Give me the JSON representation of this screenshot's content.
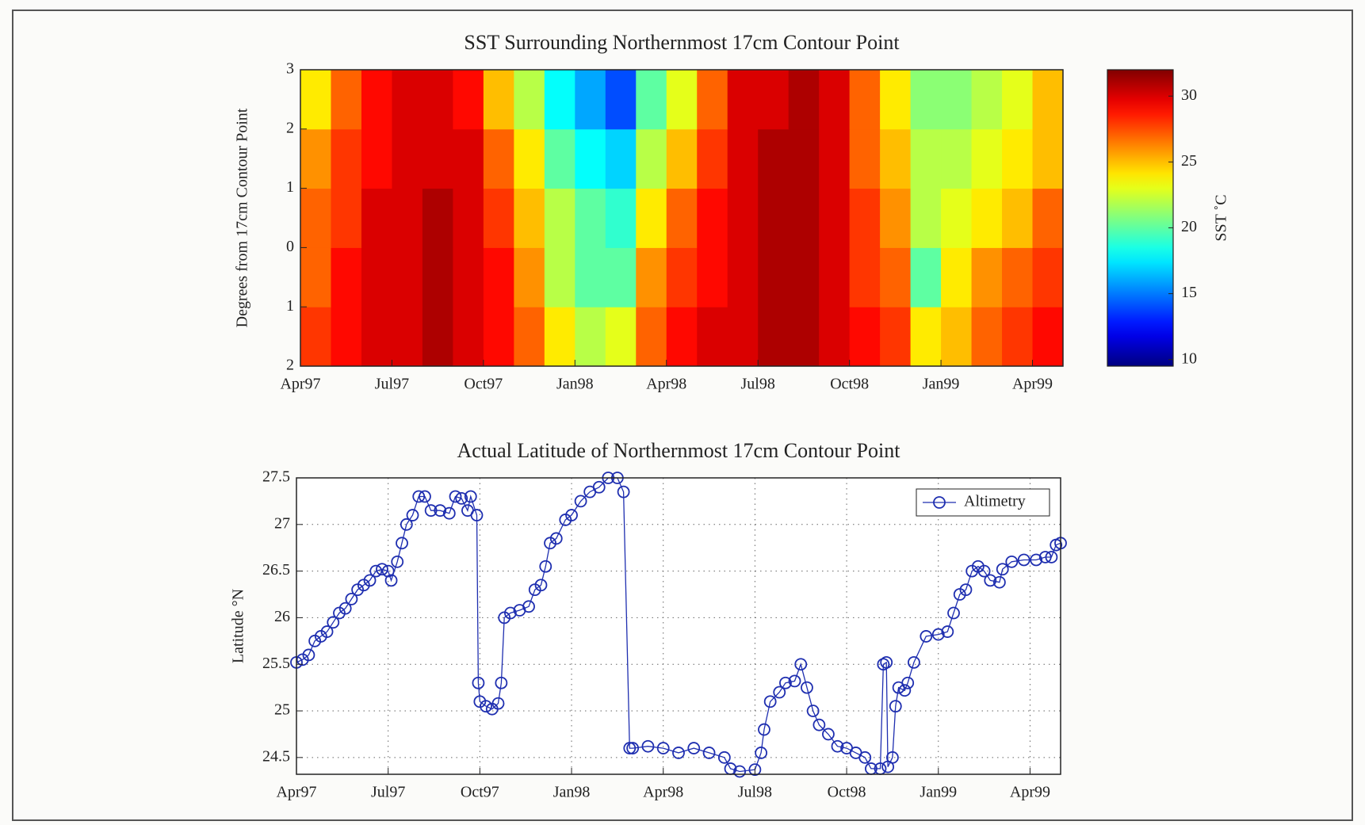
{
  "chart_data": [
    {
      "type": "heatmap",
      "title": "SST Surrounding Northernmost 17cm Contour Point",
      "ylabel": "Degrees from 17cm Contour Point",
      "xbins": [
        0,
        1,
        2,
        3,
        4,
        5,
        6,
        7,
        8,
        9,
        10,
        11,
        12,
        13,
        14,
        15,
        16,
        17,
        18,
        19,
        20,
        21,
        22,
        23,
        24,
        25
      ],
      "ybins": [
        -2,
        -1,
        0,
        1,
        2,
        3
      ],
      "z": [
        [
          28,
          29,
          30,
          30,
          31,
          30,
          29,
          27,
          24,
          22,
          23,
          27,
          29,
          30,
          30,
          31,
          31,
          30,
          29,
          28,
          24,
          25,
          27,
          28,
          29
        ],
        [
          27,
          29,
          30,
          30,
          31,
          30,
          29,
          26,
          22,
          20,
          20,
          26,
          28,
          29,
          30,
          31,
          31,
          30,
          28,
          27,
          20,
          24,
          26,
          27,
          28
        ],
        [
          27,
          28,
          30,
          30,
          31,
          30,
          28,
          25,
          22,
          20,
          19,
          24,
          27,
          29,
          30,
          31,
          31,
          30,
          28,
          26,
          22,
          23,
          24,
          25,
          27
        ],
        [
          26,
          28,
          29,
          30,
          30,
          30,
          27,
          24,
          20,
          18,
          17,
          22,
          25,
          28,
          30,
          31,
          31,
          30,
          27,
          25,
          22,
          22,
          23,
          24,
          25
        ],
        [
          24,
          27,
          29,
          30,
          30,
          29,
          25,
          22,
          18,
          16,
          14,
          20,
          23,
          27,
          30,
          30,
          31,
          30,
          27,
          24,
          21,
          21,
          22,
          23,
          25
        ]
      ],
      "colormap": "jet",
      "clim": [
        9.5,
        32
      ],
      "cticks": [
        10,
        15,
        20,
        25,
        30
      ],
      "clabel": "SST ˚C",
      "xlim": [
        0,
        25
      ],
      "xticks": [
        {
          "value": 0,
          "label": "Apr97"
        },
        {
          "value": 3,
          "label": "Jul97"
        },
        {
          "value": 6,
          "label": "Oct97"
        },
        {
          "value": 9,
          "label": "Jan98"
        },
        {
          "value": 12,
          "label": "Apr98"
        },
        {
          "value": 15,
          "label": "Jul98"
        },
        {
          "value": 18,
          "label": "Oct98"
        },
        {
          "value": 21,
          "label": "Jan99"
        },
        {
          "value": 24,
          "label": "Apr99"
        }
      ],
      "ylim": [
        -2,
        3
      ],
      "yticks": [
        {
          "value": -2,
          "label": "2"
        },
        {
          "value": -1,
          "label": "1"
        },
        0,
        1,
        2,
        3
      ],
      "grid": false
    },
    {
      "type": "line",
      "title": "Actual Latitude of Northernmost 17cm Contour Point",
      "ylabel": "Latitude °N",
      "x": [
        0,
        0.2,
        0.4,
        0.6,
        0.8,
        1.0,
        1.2,
        1.4,
        1.6,
        1.8,
        2.0,
        2.2,
        2.4,
        2.6,
        2.8,
        3.0,
        3.1,
        3.3,
        3.45,
        3.6,
        3.8,
        4.0,
        4.2,
        4.4,
        4.7,
        5.0,
        5.2,
        5.4,
        5.6,
        5.7,
        5.9,
        5.95,
        6.0,
        6.2,
        6.4,
        6.6,
        6.7,
        6.8,
        7.0,
        7.3,
        7.6,
        7.8,
        8.0,
        8.15,
        8.3,
        8.5,
        8.8,
        9.0,
        9.3,
        9.6,
        9.9,
        10.2,
        10.5,
        10.7,
        10.9,
        11.0,
        11.5,
        12.0,
        12.5,
        13.0,
        13.5,
        14.0,
        14.2,
        14.5,
        15.0,
        15.2,
        15.3,
        15.5,
        15.8,
        16.0,
        16.3,
        16.5,
        16.7,
        16.9,
        17.1,
        17.4,
        17.7,
        18.0,
        18.3,
        18.6,
        18.8,
        19.1,
        19.2,
        19.3,
        19.35,
        19.5,
        19.6,
        19.7,
        19.9,
        20.0,
        20.2,
        20.6,
        21.0,
        21.3,
        21.5,
        21.7,
        21.9,
        22.1,
        22.3,
        22.5,
        22.7,
        23.0,
        23.1,
        23.4,
        23.8,
        24.2,
        24.5,
        24.7,
        24.85,
        25.0
      ],
      "series": [
        {
          "name": "Altimetry",
          "color": "#1f2fb0",
          "values": [
            25.52,
            25.55,
            25.6,
            25.75,
            25.8,
            25.85,
            25.95,
            26.05,
            26.1,
            26.2,
            26.3,
            26.35,
            26.4,
            26.5,
            26.52,
            26.5,
            26.4,
            26.6,
            26.8,
            27.0,
            27.1,
            27.3,
            27.3,
            27.15,
            27.15,
            27.12,
            27.3,
            27.28,
            27.15,
            27.3,
            27.1,
            25.3,
            25.1,
            25.05,
            25.02,
            25.08,
            25.3,
            26.0,
            26.05,
            26.08,
            26.12,
            26.3,
            26.35,
            26.55,
            26.8,
            26.85,
            27.05,
            27.1,
            27.25,
            27.35,
            27.4,
            27.5,
            27.5,
            27.35,
            24.6,
            24.6,
            24.62,
            24.6,
            24.55,
            24.6,
            24.55,
            24.5,
            24.38,
            24.35,
            24.37,
            24.55,
            24.8,
            25.1,
            25.2,
            25.3,
            25.32,
            25.5,
            25.25,
            25.0,
            24.85,
            24.75,
            24.62,
            24.6,
            24.55,
            24.5,
            24.38,
            24.38,
            25.5,
            25.52,
            24.4,
            24.5,
            25.05,
            25.25,
            25.22,
            25.3,
            25.52,
            25.8,
            25.82,
            25.85,
            26.05,
            26.25,
            26.3,
            26.5,
            26.55,
            26.5,
            26.4,
            26.38,
            26.52,
            26.6,
            26.62,
            26.62,
            26.65,
            26.65,
            26.78,
            26.8
          ]
        }
      ],
      "xlim": [
        0,
        25
      ],
      "xticks": [
        {
          "value": 0,
          "label": "Apr97"
        },
        {
          "value": 3,
          "label": "Jul97"
        },
        {
          "value": 6,
          "label": "Oct97"
        },
        {
          "value": 9,
          "label": "Jan98"
        },
        {
          "value": 12,
          "label": "Apr98"
        },
        {
          "value": 15,
          "label": "Jul98"
        },
        {
          "value": 18,
          "label": "Oct98"
        },
        {
          "value": 21,
          "label": "Jan99"
        },
        {
          "value": 24,
          "label": "Apr99"
        }
      ],
      "ylim": [
        24.32,
        27.5
      ],
      "yticks": [
        24.5,
        25,
        25.5,
        26,
        26.5,
        27,
        27.5
      ],
      "grid": true,
      "legend": "northeast"
    }
  ]
}
